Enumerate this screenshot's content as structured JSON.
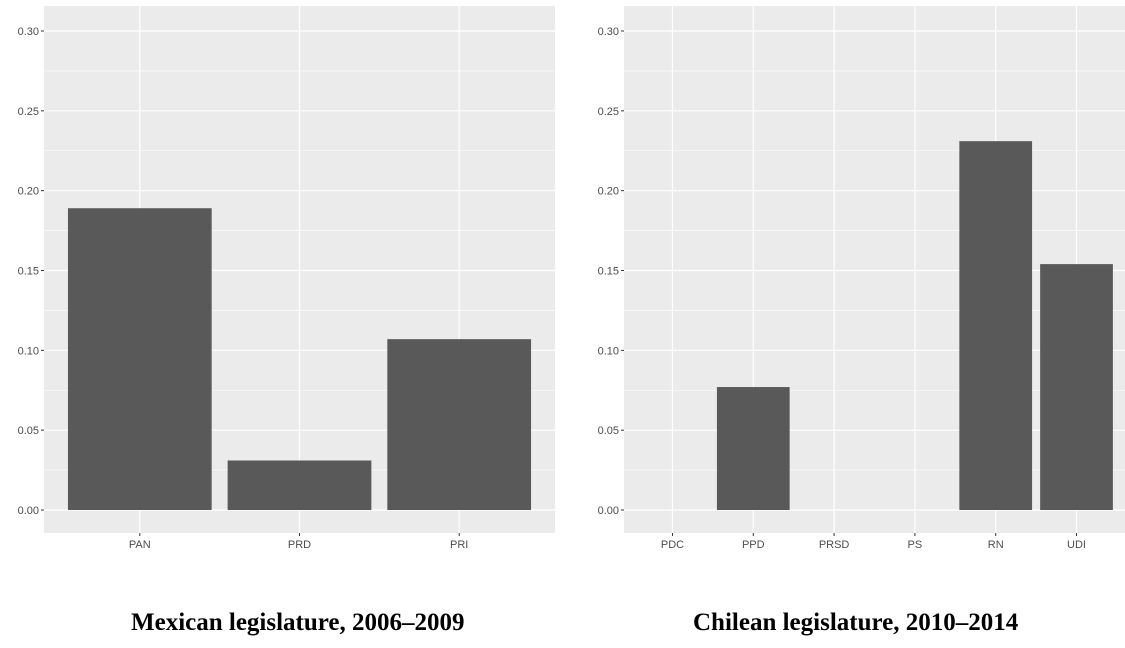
{
  "chart_data": [
    {
      "type": "bar",
      "title": "Mexican legislature, 2006–2009",
      "xlabel": "",
      "ylabel": "",
      "categories": [
        "PAN",
        "PRD",
        "PRI"
      ],
      "values": [
        0.189,
        0.031,
        0.107
      ],
      "ylim": [
        0,
        0.3
      ],
      "yticks": [
        "0.00",
        "0.05",
        "0.10",
        "0.15",
        "0.20",
        "0.25",
        "0.30"
      ],
      "grid": true,
      "bar_color": "#595959",
      "panel_color": "#ebebeb"
    },
    {
      "type": "bar",
      "title": "Chilean legislature, 2010–2014",
      "xlabel": "",
      "ylabel": "",
      "categories": [
        "PDC",
        "PPD",
        "PRSD",
        "PS",
        "RN",
        "UDI"
      ],
      "values": [
        0,
        0.077,
        0,
        0,
        0.231,
        0.154
      ],
      "ylim": [
        0,
        0.3
      ],
      "yticks": [
        "0.00",
        "0.05",
        "0.10",
        "0.15",
        "0.20",
        "0.25",
        "0.30"
      ],
      "grid": true,
      "bar_color": "#595959",
      "panel_color": "#ebebeb"
    }
  ]
}
